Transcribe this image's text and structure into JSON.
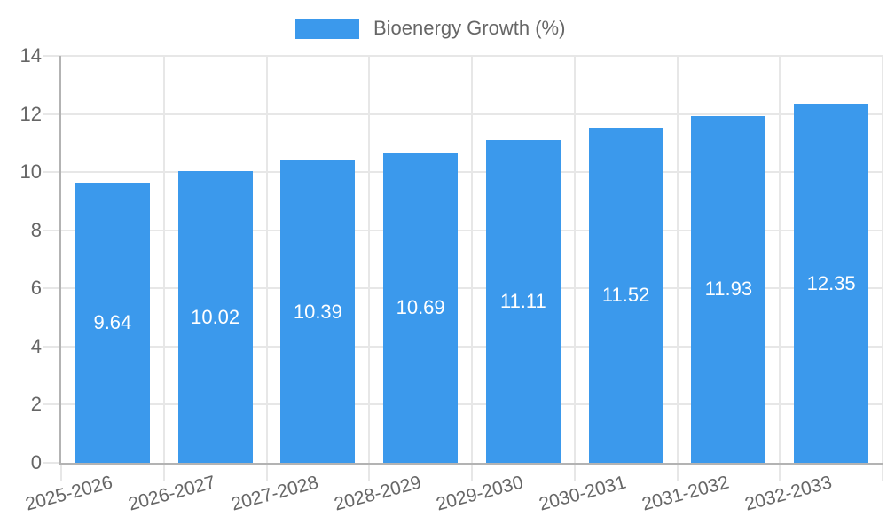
{
  "legend": {
    "label": "Bioenergy Growth (%)"
  },
  "chart_data": {
    "type": "bar",
    "title": "",
    "xlabel": "",
    "ylabel": "",
    "categories": [
      "2025-2026",
      "2026-2027",
      "2027-2028",
      "2028-2029",
      "2029-2030",
      "2030-2031",
      "2031-2032",
      "2032-2033"
    ],
    "values": [
      9.64,
      10.02,
      10.39,
      10.69,
      11.11,
      11.52,
      11.93,
      12.35
    ],
    "value_labels": [
      "9.64",
      "10.02",
      "10.39",
      "10.69",
      "11.11",
      "11.52",
      "11.93",
      "12.35"
    ],
    "series": [
      {
        "name": "Bioenergy Growth (%)",
        "values": [
          9.64,
          10.02,
          10.39,
          10.69,
          11.11,
          11.52,
          11.93,
          12.35
        ]
      }
    ],
    "ylim": [
      0,
      14
    ],
    "yticks": [
      0,
      2,
      4,
      6,
      8,
      10,
      12,
      14
    ],
    "grid": true,
    "legend_position": "top-center",
    "x_tick_rotation_deg": -15,
    "colors": {
      "bar": "#3B99EC",
      "value_label": "#FFFFFF",
      "axis": "#B3B3B3",
      "grid": "#E7E7E7",
      "tick_label": "#666666",
      "background": "#FFFFFF"
    }
  }
}
